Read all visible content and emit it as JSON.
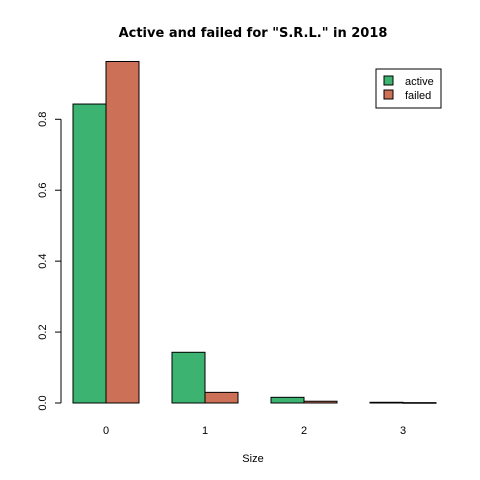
{
  "chart_data": {
    "type": "bar",
    "title": "Active and failed for \"S.R.L.\" in 2018",
    "xlabel": "Size",
    "ylabel": "",
    "categories": [
      "0",
      "1",
      "2",
      "3"
    ],
    "series": [
      {
        "name": "active",
        "color": "#3cb371",
        "values": [
          0.843,
          0.143,
          0.016,
          0.002
        ]
      },
      {
        "name": "failed",
        "color": "#cd7058",
        "values": [
          0.963,
          0.03,
          0.005,
          0.001
        ]
      }
    ],
    "ylim": [
      0,
      0.97
    ],
    "yticks": [
      0.0,
      0.2,
      0.4,
      0.6,
      0.8
    ],
    "ytick_labels": [
      "0.0",
      "0.2",
      "0.4",
      "0.6",
      "0.8"
    ],
    "grid": false,
    "legend_position": "top-right"
  }
}
